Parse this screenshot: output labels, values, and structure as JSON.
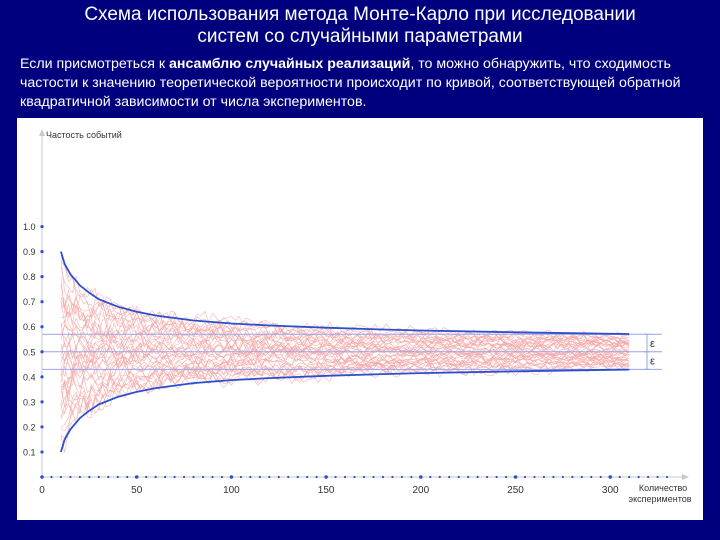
{
  "slide": {
    "title_line1": "Схема использования метода Монте-Карло при исследовании",
    "title_line2": "систем со случайными параметрами",
    "text_part1": "Если присмотреться к ",
    "text_bold": "ансамблю случайных реализаций",
    "text_part2": ", то можно обнаружить, что сходимость частости к значению теоретической вероятности происходит по кривой, соответствующей обратной квадратичной зависимости от числа экспериментов."
  },
  "chart_data": {
    "type": "line",
    "ylabel": "Частость событий",
    "xlabel_line1": "Количество",
    "xlabel_line2": "экспериментов",
    "xlim": [
      0,
      340
    ],
    "ylim": [
      0,
      1.17
    ],
    "x_ticks": [
      0,
      50,
      100,
      150,
      200,
      250,
      300
    ],
    "y_ticks": [
      0.1,
      0.2,
      0.3,
      0.4,
      0.5,
      0.6,
      0.7,
      0.8,
      0.9,
      1.0
    ],
    "y_tick_labels": [
      "0.1",
      "0.2",
      "0.3",
      "0.4",
      "0.5",
      "0.6",
      "0.7",
      "0.8",
      "0.9",
      "1.0"
    ],
    "probability": 0.5,
    "epsilon_band": [
      0.43,
      0.57
    ],
    "epsilon_label": "ε",
    "series": [
      {
        "role": "upper-envelope",
        "x": [
          10,
          12,
          15,
          20,
          25,
          30,
          40,
          50,
          60,
          80,
          100,
          120,
          150,
          180,
          200,
          250,
          300,
          310
        ],
        "values": [
          0.9,
          0.85,
          0.81,
          0.765,
          0.735,
          0.71,
          0.68,
          0.66,
          0.645,
          0.625,
          0.613,
          0.605,
          0.596,
          0.589,
          0.585,
          0.578,
          0.572,
          0.571
        ]
      },
      {
        "role": "lower-envelope",
        "x": [
          10,
          12,
          15,
          20,
          25,
          30,
          40,
          50,
          60,
          80,
          100,
          120,
          150,
          180,
          200,
          250,
          300,
          310
        ],
        "values": [
          0.1,
          0.15,
          0.19,
          0.235,
          0.265,
          0.29,
          0.32,
          0.34,
          0.355,
          0.375,
          0.387,
          0.395,
          0.404,
          0.411,
          0.415,
          0.422,
          0.428,
          0.429
        ]
      }
    ],
    "realizations": {
      "count": 40,
      "x_start": 10,
      "x_end": 310,
      "color": "#f4a6a6"
    },
    "colors": {
      "envelope": "#2a4fd0",
      "reference": "#9aa3e8",
      "axis": "#c8c8c8",
      "tick_dot": "#2a4fd0",
      "text": "#333333"
    }
  }
}
